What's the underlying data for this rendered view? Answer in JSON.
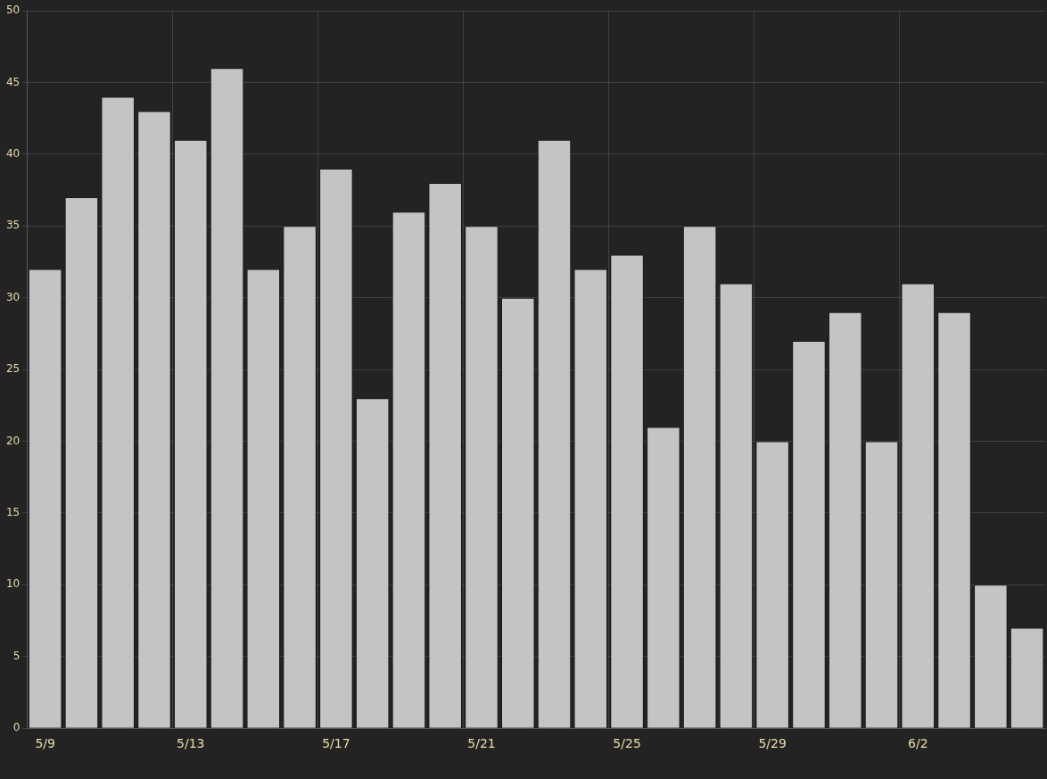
{
  "chart_data": {
    "type": "bar",
    "categories": [
      "5/9",
      null,
      null,
      null,
      "5/13",
      null,
      null,
      null,
      "5/17",
      null,
      null,
      null,
      "5/21",
      null,
      null,
      null,
      "5/25",
      null,
      null,
      null,
      "5/29",
      null,
      null,
      null,
      "6/2",
      null,
      null,
      null
    ],
    "values": [
      32,
      37,
      44,
      43,
      41,
      46,
      32,
      35,
      39,
      23,
      36,
      38,
      35,
      30,
      41,
      32,
      33,
      21,
      35,
      31,
      20,
      27,
      29,
      20,
      31,
      29,
      10,
      7
    ],
    "color": "#c4c4c4",
    "ylim": [
      0,
      50
    ],
    "yticks": [
      0,
      5,
      10,
      15,
      20,
      25,
      30,
      35,
      40,
      45,
      50
    ],
    "grid": true,
    "legend": false
  }
}
